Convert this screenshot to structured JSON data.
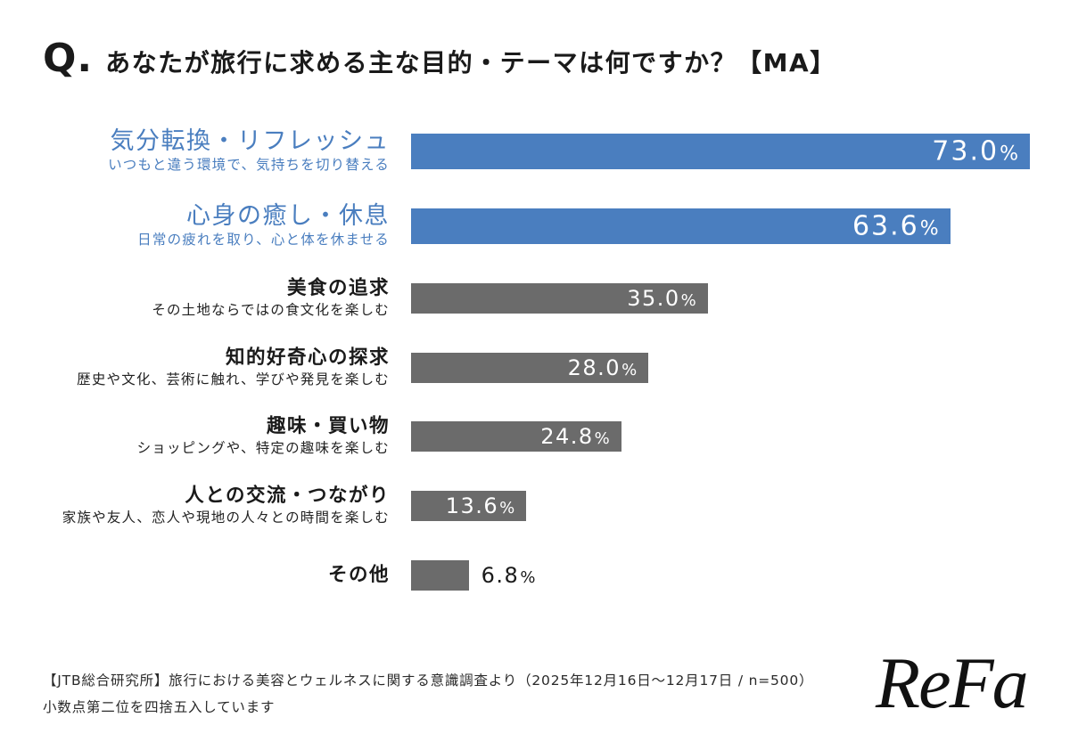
{
  "chart_data": {
    "type": "bar",
    "orientation": "horizontal",
    "title_prefix": "Q.",
    "title": "あなたが旅行に求める主な目的・テーマは何ですか？【MA】",
    "categories": [
      "気分転換・リフレッシュ",
      "心身の癒し・休息",
      "美食の追求",
      "知的好奇心の探求",
      "趣味・買い物",
      "人との交流・つながり",
      "その他"
    ],
    "descriptions": [
      "いつもと違う環境で、気持ちを切り替える",
      "日常の疲れを取り、心と体を休ませる",
      "その土地ならではの食文化を楽しむ",
      "歴史や文化、芸術に触れ、学びや発見を楽しむ",
      "ショッピングや、特定の趣味を楽しむ",
      "家族や友人、恋人や現地の人々との時間を楽しむ",
      null
    ],
    "values": [
      73.0,
      63.6,
      35.0,
      28.0,
      24.8,
      13.6,
      6.8
    ],
    "unit": "%",
    "highlighted": [
      true,
      true,
      false,
      false,
      false,
      false,
      false
    ],
    "xlim": [
      0,
      100
    ],
    "grid": false
  },
  "footer": {
    "source": "【JTB総合研究所】旅行における美容とウェルネスに関する意識調査より（2025年12月16日〜12月17日 / n=500）",
    "note": "小数点第二位を四捨五入しています"
  },
  "brand": {
    "logo_text": "ReFa"
  },
  "colors": {
    "highlight_bar": "#4a7ebf",
    "highlight_text": "#4a7ebf",
    "default_bar": "#6b6b6b",
    "text": "#1a1a1a",
    "value_inside": "#ffffff"
  }
}
